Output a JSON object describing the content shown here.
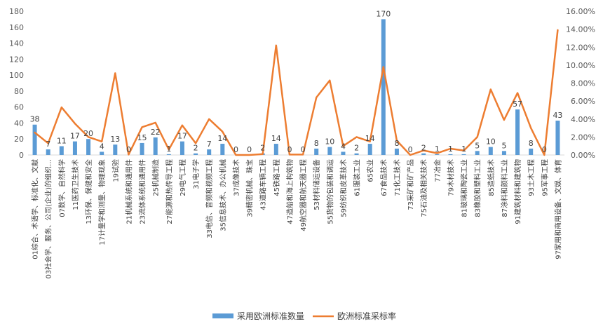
{
  "chart_data": {
    "type": "bar",
    "categories": [
      "01综合、术语学、标准化、文献",
      "03社会学、服务、公司(企业)的组织…",
      "07数学、自然科学",
      "11医药卫生技术",
      "13环保、保健和安全",
      "17计量学和测量、物理现象",
      "19试验",
      "21机械系统和通用件",
      "23流体系统和通用件",
      "25机械制造",
      "27能源和热传导工程",
      "29电气工程",
      "31电子学",
      "33电信、音频和视频工程",
      "35信息技术、办公机械",
      "37成像技术",
      "39精密机械、珠宝",
      "43道路车辆工程",
      "45铁路工程",
      "47造船和海上构筑物",
      "49航空器和航天器工程",
      "53材料储运设备",
      "55货物的包装和调运",
      "59纺织和皮革技术",
      "61服装工业",
      "65农业",
      "67食品技术",
      "71化工技术",
      "73采矿和矿产品",
      "75石油及相关技术",
      "77冶金",
      "79木材技术",
      "81玻璃和陶瓷工业",
      "83橡胶和塑料工业",
      "85造纸技术",
      "87涂料和颜料工业",
      "91建筑材料和建筑物",
      "93土木工程",
      "95军事工程",
      "97家用和商用设备、文娱、体育"
    ],
    "series": [
      {
        "name": "采用欧洲标准数量",
        "kind": "bar",
        "axis": "left",
        "color": "#5b9bd5",
        "values": [
          38,
          7,
          11,
          17,
          20,
          4,
          13,
          0,
          15,
          22,
          1,
          17,
          2,
          7,
          14,
          0,
          0,
          2,
          14,
          0,
          0,
          8,
          10,
          4,
          2,
          14,
          170,
          8,
          0,
          2,
          1,
          1,
          1,
          5,
          10,
          5,
          57,
          8,
          0,
          43
        ]
      },
      {
        "name": "欧洲标准采标率",
        "kind": "line",
        "axis": "right",
        "color": "#ed7d31",
        "values": [
          2.5,
          1.3,
          5.3,
          3.5,
          2.0,
          1.5,
          9.1,
          0.05,
          3.1,
          3.6,
          0.6,
          3.3,
          1.3,
          4.0,
          2.6,
          0.0,
          0.0,
          0.1,
          12.2,
          0.05,
          0.05,
          6.4,
          8.3,
          1.0,
          2.0,
          1.5,
          9.8,
          1.6,
          0.0,
          0.5,
          0.2,
          0.7,
          0.5,
          2.0,
          7.3,
          3.9,
          6.9,
          3.0,
          0.0,
          13.9
        ]
      }
    ],
    "y_left": {
      "ylim": [
        0,
        180
      ],
      "ticks": [
        "0",
        "20",
        "40",
        "60",
        "80",
        "100",
        "120",
        "140",
        "160",
        "180"
      ]
    },
    "y_right": {
      "ylim": [
        0,
        16
      ],
      "ticks": [
        "0.00%",
        "2.00%",
        "4.00%",
        "6.00%",
        "8.00%",
        "10.00%",
        "12.00%",
        "14.00%",
        "16.00%"
      ]
    },
    "title": "",
    "legend_position": "bottom",
    "grid": false
  }
}
